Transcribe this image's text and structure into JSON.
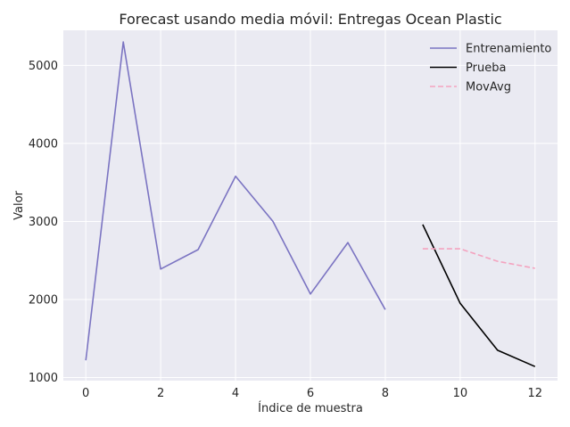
{
  "chart_data": {
    "type": "line",
    "title": "Forecast usando media móvil: Entregas Ocean Plastic",
    "xlabel": "Índice de muestra",
    "ylabel": "Valor",
    "xlim": [
      -0.6,
      12.6
    ],
    "ylim": [
      960,
      5450
    ],
    "xticks": [
      0,
      2,
      4,
      6,
      8,
      10,
      12
    ],
    "yticks": [
      1000,
      2000,
      3000,
      4000,
      5000
    ],
    "grid": true,
    "legend_position": "top-right",
    "series": [
      {
        "name": "Entrenamiento",
        "color": "#7b74c2",
        "dash": "solid",
        "x": [
          0,
          1,
          2,
          3,
          4,
          5,
          6,
          7,
          8
        ],
        "y": [
          1220,
          5300,
          2390,
          2640,
          3580,
          3000,
          2070,
          2730,
          1870
        ]
      },
      {
        "name": "Prueba",
        "color": "#000000",
        "dash": "solid",
        "x": [
          9,
          10,
          11,
          12
        ],
        "y": [
          2960,
          1950,
          1350,
          1140
        ]
      },
      {
        "name": "MovAvg",
        "color": "#f4a3bf",
        "dash": "dashed",
        "x": [
          9,
          10,
          11,
          12
        ],
        "y": [
          2650,
          2650,
          2490,
          2400
        ]
      }
    ]
  }
}
